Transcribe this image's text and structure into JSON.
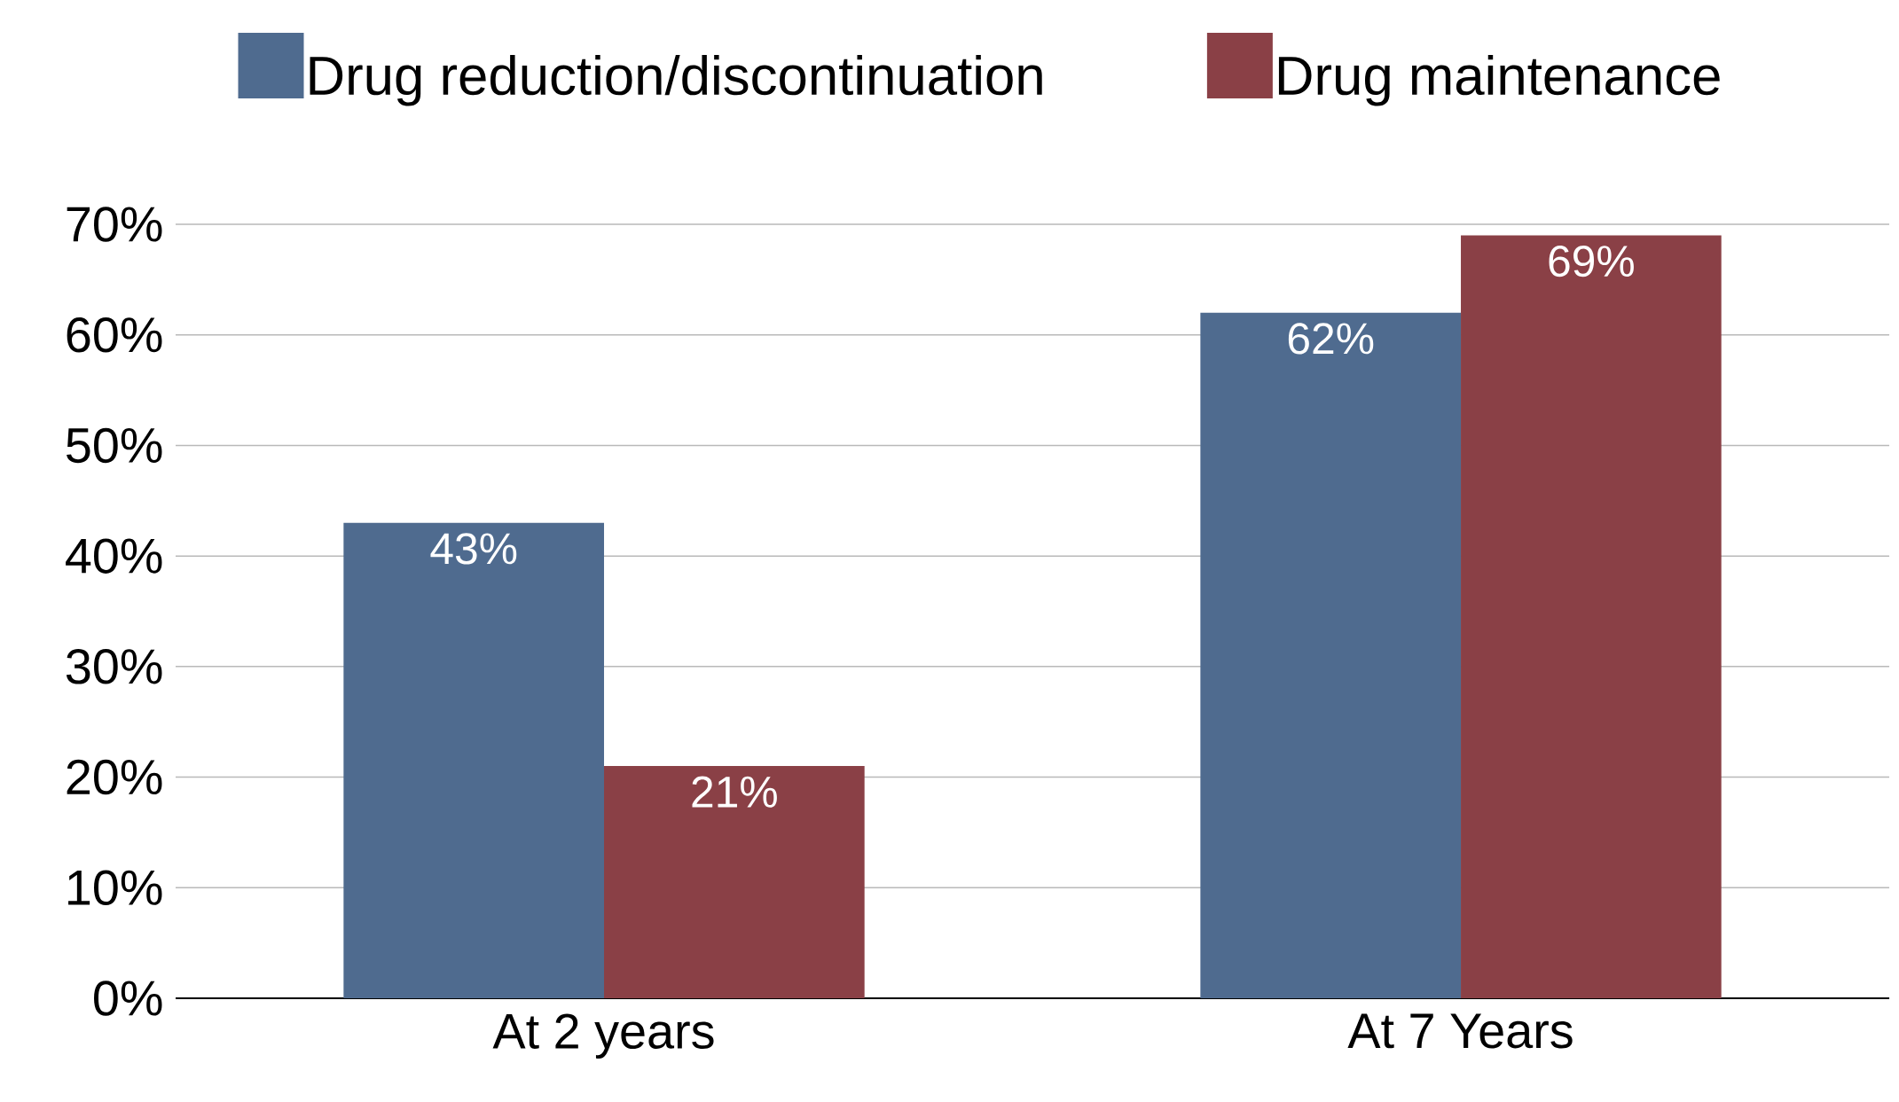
{
  "chart_data": {
    "type": "bar",
    "categories": [
      "At 2 years",
      "At 7 Years"
    ],
    "series": [
      {
        "name": "Drug reduction/discontinuation",
        "color": "#4f6b8f",
        "values": [
          43,
          62
        ],
        "value_labels": [
          "43%",
          "62%"
        ]
      },
      {
        "name": "Drug maintenance",
        "color": "#8a4046",
        "values": [
          21,
          69
        ],
        "value_labels": [
          "21%",
          "69%"
        ]
      }
    ],
    "ylim": [
      0,
      70
    ],
    "yticks": [
      {
        "value": 0,
        "label": "0%"
      },
      {
        "value": 10,
        "label": "10%"
      },
      {
        "value": 20,
        "label": "20%"
      },
      {
        "value": 30,
        "label": "30%"
      },
      {
        "value": 40,
        "label": "40%"
      },
      {
        "value": 50,
        "label": "50%"
      },
      {
        "value": 60,
        "label": "60%"
      },
      {
        "value": 70,
        "label": "70%"
      }
    ],
    "grid": "y",
    "legend": "top"
  }
}
